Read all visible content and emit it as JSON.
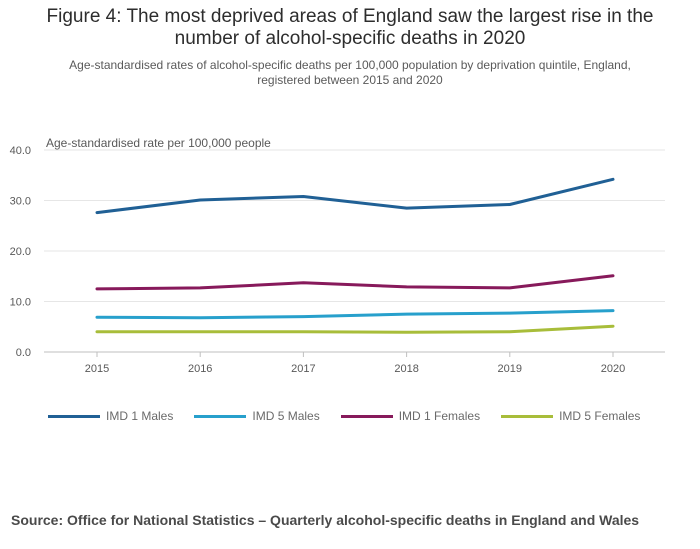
{
  "title": "Figure 4: The most deprived areas of England saw the largest rise in the\nnumber of alcohol-specific deaths in 2020",
  "subtitle": "Age-standardised rates of alcohol-specific deaths per 100,000 population by deprivation quintile, England,\nregistered between 2015 and 2020",
  "source": "Source: Office for National Statistics – Quarterly alcohol-specific deaths in England and Wales",
  "chart_data": {
    "type": "line",
    "title": "",
    "xlabel": "",
    "ylabel": "Age-standardised rate per 100,000 people",
    "x": [
      "2015",
      "2016",
      "2017",
      "2018",
      "2019",
      "2020"
    ],
    "ylim": [
      0,
      40
    ],
    "yticks": [
      "0.0",
      "10.0",
      "20.0",
      "30.0",
      "40.0"
    ],
    "grid": true,
    "legend_position": "bottom",
    "series": [
      {
        "name": "IMD 1 Males",
        "color": "#206095",
        "values": [
          27.6,
          30.1,
          30.8,
          28.5,
          29.2,
          34.2
        ]
      },
      {
        "name": "IMD 5 Males",
        "color": "#27a0cc",
        "values": [
          6.9,
          6.8,
          7.0,
          7.5,
          7.7,
          8.2
        ]
      },
      {
        "name": "IMD 1 Females",
        "color": "#871a5b",
        "values": [
          12.5,
          12.7,
          13.7,
          12.9,
          12.7,
          15.1
        ]
      },
      {
        "name": "IMD 5 Females",
        "color": "#a8bd3a",
        "values": [
          4.0,
          4.0,
          4.0,
          3.9,
          4.0,
          5.1
        ]
      }
    ]
  }
}
